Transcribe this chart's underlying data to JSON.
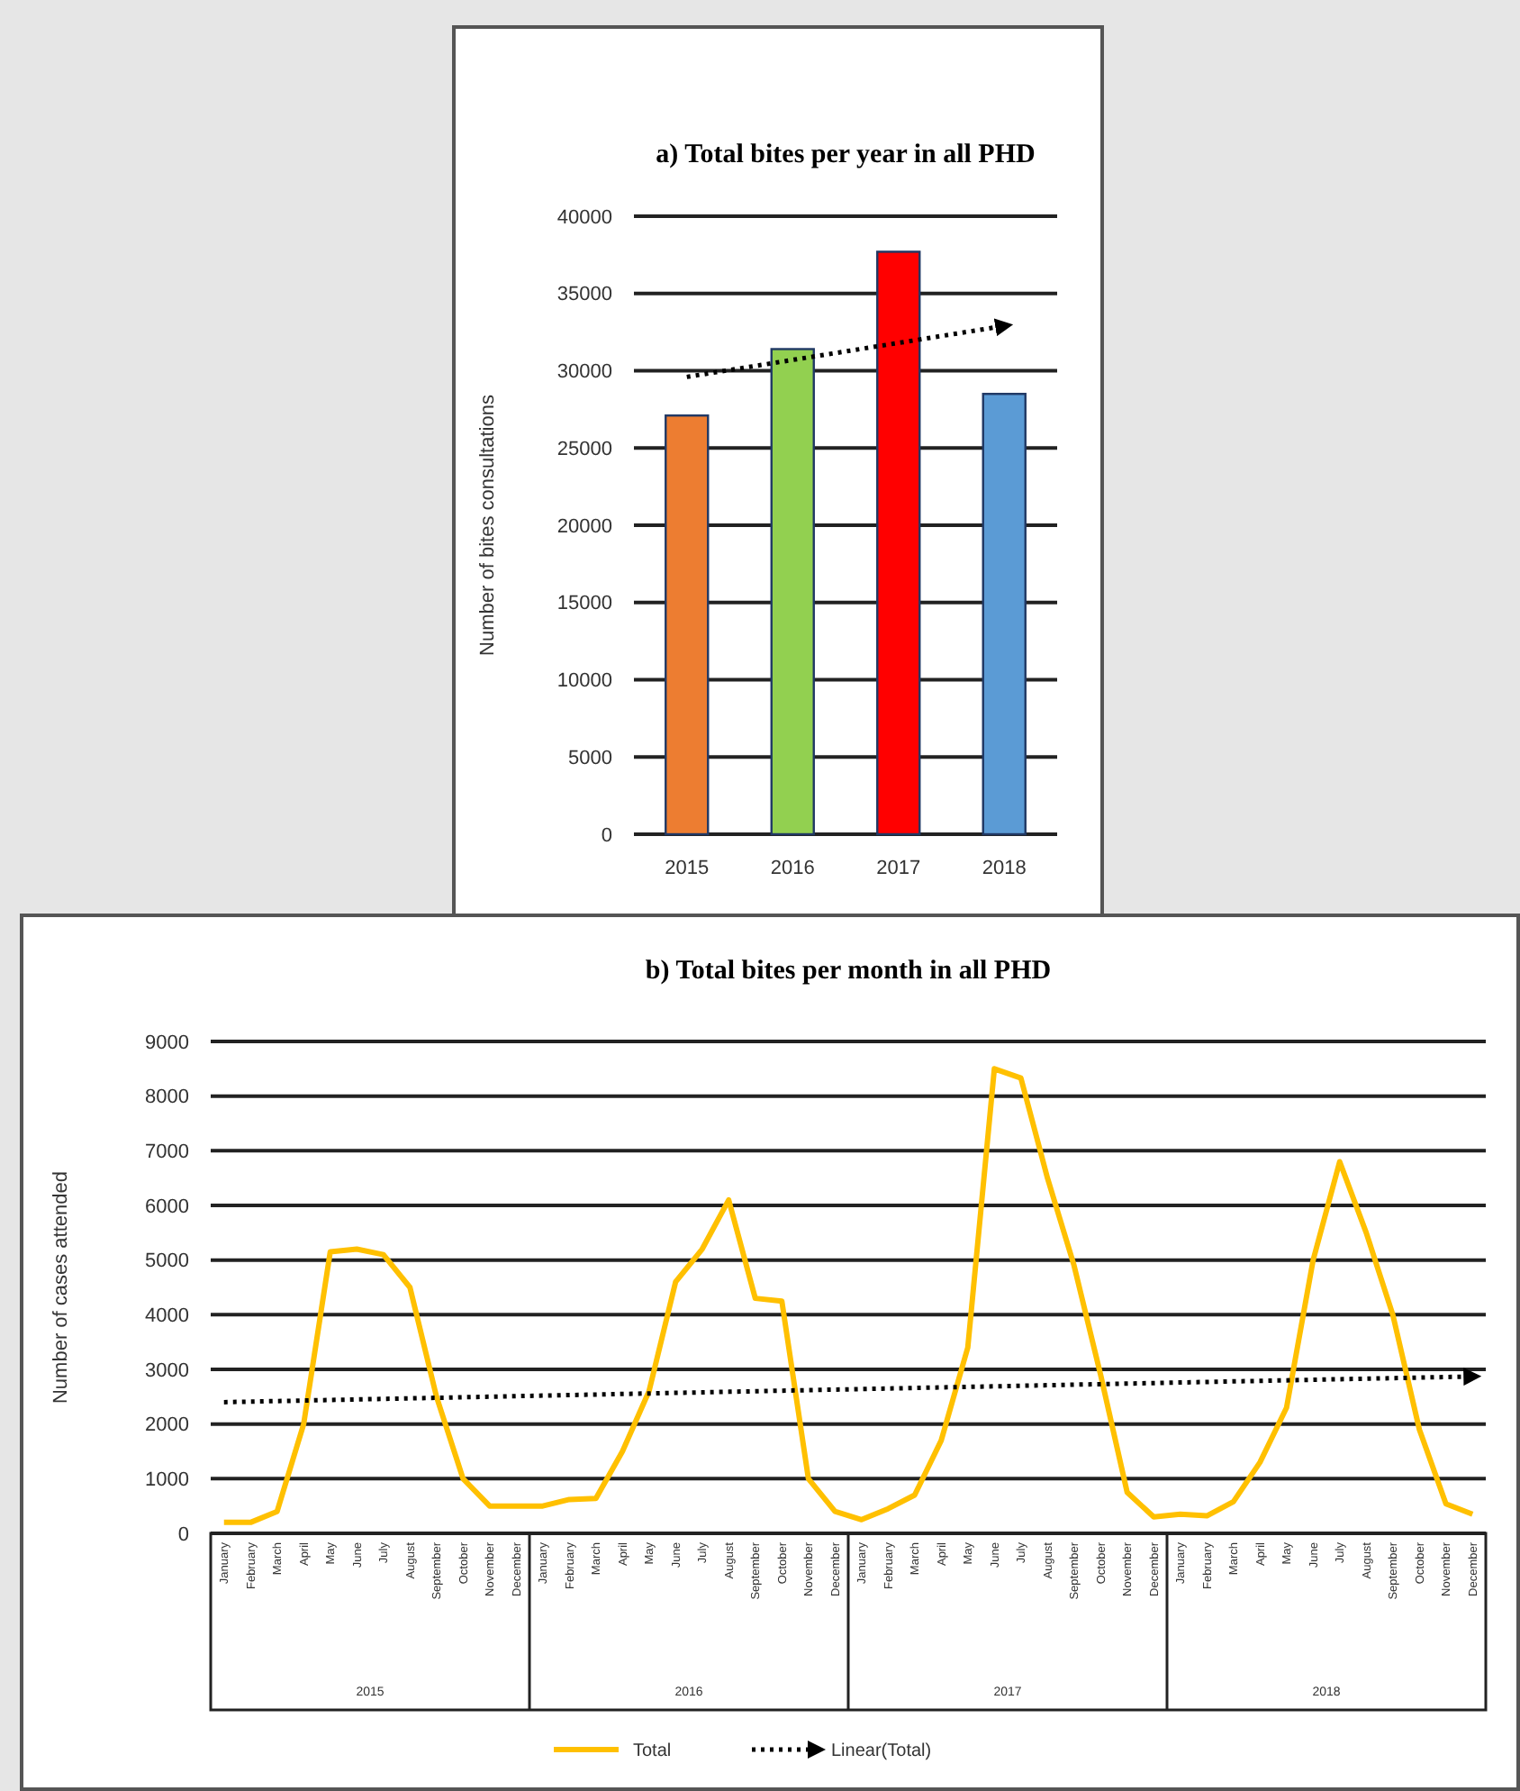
{
  "chart_data": [
    {
      "type": "bar",
      "title": "a) Total bites per year in all PHD",
      "ylabel": "Number of bites consultations",
      "categories": [
        "2015",
        "2016",
        "2017",
        "2018"
      ],
      "series": [
        {
          "type": "bar",
          "colors": [
            "#ed7d31",
            "#92d050",
            "#ff0000",
            "#5b9bd5"
          ],
          "values": [
            27100,
            31400,
            37700,
            28500
          ]
        },
        {
          "type": "line",
          "color": "#000000",
          "line_style": "dotted",
          "values": [
            29600,
            30700,
            31800,
            32900
          ]
        }
      ],
      "ylim": [
        0,
        40000
      ],
      "yticks": [
        0,
        5000,
        10000,
        15000,
        20000,
        25000,
        30000,
        35000,
        40000
      ],
      "grid": "y",
      "legend": false
    },
    {
      "type": "line",
      "title": "b) Total bites per month in all PHD",
      "ylabel": "Number of cases attended",
      "categories": [
        "January",
        "February",
        "March",
        "April",
        "May",
        "June",
        "July",
        "August",
        "September",
        "October",
        "November",
        "December",
        "January",
        "February",
        "March",
        "April",
        "May",
        "June",
        "July",
        "August",
        "September",
        "October",
        "November",
        "December",
        "January",
        "February",
        "March",
        "April",
        "May",
        "June",
        "July",
        "August",
        "September",
        "October",
        "November",
        "December",
        "January",
        "February",
        "March",
        "April",
        "May",
        "June",
        "July",
        "August",
        "September",
        "October",
        "November",
        "December"
      ],
      "annotations": [
        "2015",
        "2016",
        "2017",
        "2018"
      ],
      "series": [
        {
          "name": "Total",
          "color": "#ffc000",
          "line_style": "solid",
          "values": [
            200,
            200,
            400,
            2000,
            5150,
            5200,
            5100,
            4500,
            2500,
            1000,
            500,
            500,
            500,
            620,
            640,
            1500,
            2600,
            4600,
            5200,
            6100,
            4300,
            4250,
            1000,
            400,
            250,
            450,
            700,
            1700,
            3400,
            8500,
            8330,
            6500,
            4900,
            2900,
            750,
            300,
            350,
            320,
            580,
            1300,
            2300,
            5000,
            6800,
            5500,
            4000,
            1900,
            540,
            350
          ]
        },
        {
          "name": "Linear(Total)",
          "color": "#000000",
          "line_style": "dotted",
          "values": [
            2400,
            2410,
            2420,
            2430,
            2440,
            2450,
            2460,
            2470,
            2480,
            2490,
            2500,
            2510,
            2520,
            2530,
            2540,
            2550,
            2560,
            2570,
            2580,
            2590,
            2600,
            2610,
            2620,
            2630,
            2640,
            2650,
            2660,
            2670,
            2680,
            2690,
            2700,
            2710,
            2720,
            2730,
            2740,
            2750,
            2760,
            2770,
            2780,
            2790,
            2800,
            2810,
            2820,
            2830,
            2840,
            2850,
            2860,
            2870
          ]
        }
      ],
      "ylim": [
        0,
        9000
      ],
      "yticks": [
        0,
        1000,
        2000,
        3000,
        4000,
        5000,
        6000,
        7000,
        8000,
        9000
      ],
      "grid": "y",
      "legend": "bottom",
      "marker": "none"
    }
  ]
}
